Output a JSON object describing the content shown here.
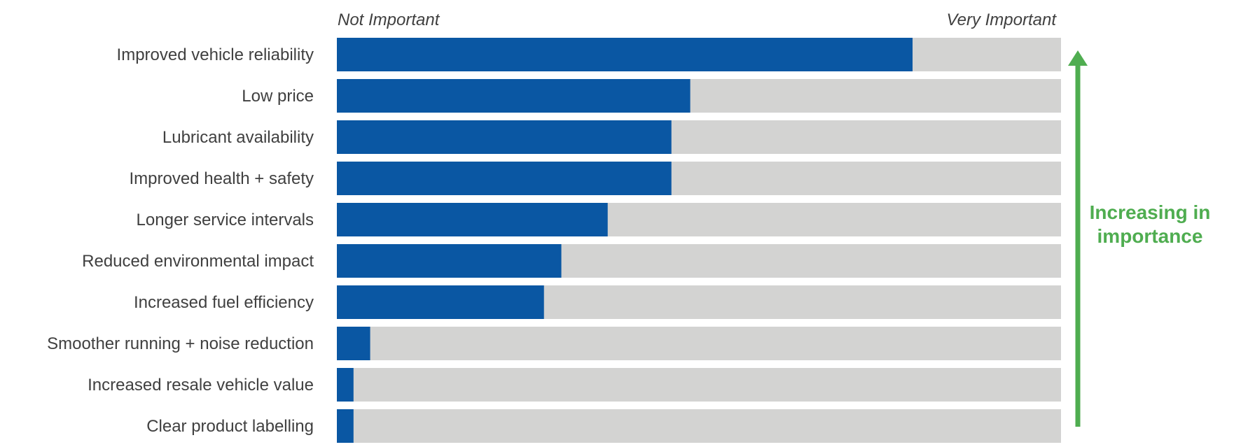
{
  "chart_data": {
    "type": "bar",
    "orientation": "horizontal",
    "scale_min_label": "Not Important",
    "scale_max_label": "Very Important",
    "xlim": [
      0,
      1
    ],
    "categories": [
      "Improved vehicle reliability",
      "Low price",
      "Lubricant availability",
      "Improved health + safety",
      "Longer service intervals",
      "Reduced environmental impact",
      "Increased fuel efficiency",
      "Smoother running + noise reduction",
      "Increased resale vehicle value",
      "Clear product labelling"
    ],
    "values": [
      0.795,
      0.488,
      0.462,
      0.462,
      0.374,
      0.31,
      0.286,
      0.046,
      0.023,
      0.023
    ],
    "annotation_line1": "Increasing in",
    "annotation_line2": "importance",
    "colors": {
      "bar": "#0a57a3",
      "track": "#d3d3d2",
      "arrow": "#4fad50",
      "text": "#404040"
    },
    "grid": false,
    "legend": "none"
  }
}
